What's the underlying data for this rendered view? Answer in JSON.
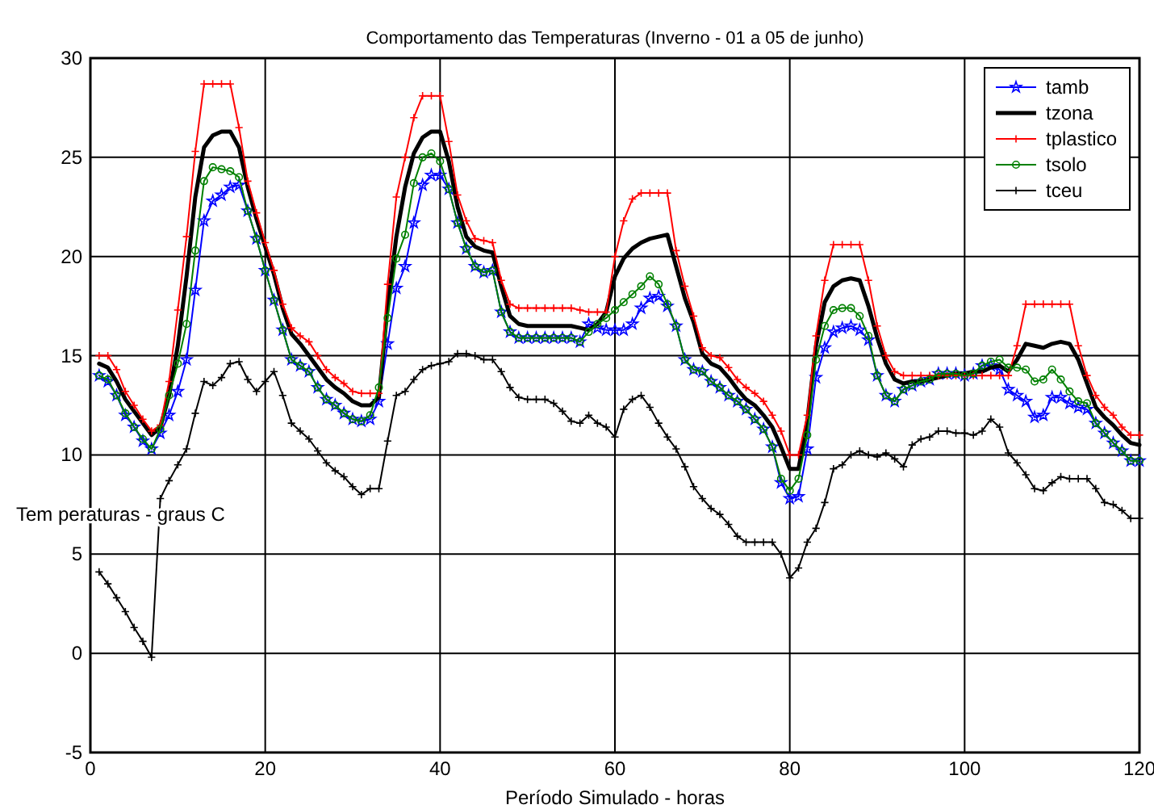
{
  "chart_data": {
    "type": "line",
    "title": "Comportamento das Temperaturas (Inverno - 01 a 05 de junho)",
    "xlabel": "Período Simulado - horas",
    "ylabel": "Tem peraturas -  graus C",
    "x": [
      1,
      2,
      3,
      4,
      5,
      6,
      7,
      8,
      9,
      10,
      11,
      12,
      13,
      14,
      15,
      16,
      17,
      18,
      19,
      20,
      21,
      22,
      23,
      24,
      25,
      26,
      27,
      28,
      29,
      30,
      31,
      32,
      33,
      34,
      35,
      36,
      37,
      38,
      39,
      40,
      41,
      42,
      43,
      44,
      45,
      46,
      47,
      48,
      49,
      50,
      51,
      52,
      53,
      54,
      55,
      56,
      57,
      58,
      59,
      60,
      61,
      62,
      63,
      64,
      65,
      66,
      67,
      68,
      69,
      70,
      71,
      72,
      73,
      74,
      75,
      76,
      77,
      78,
      79,
      80,
      81,
      82,
      83,
      84,
      85,
      86,
      87,
      88,
      89,
      90,
      91,
      92,
      93,
      94,
      95,
      96,
      97,
      98,
      99,
      100,
      101,
      102,
      103,
      104,
      105,
      106,
      107,
      108,
      109,
      110,
      111,
      112,
      113,
      114,
      115,
      116,
      117,
      118,
      119,
      120
    ],
    "series": [
      {
        "name": "tamb",
        "color": "#0000ff",
        "marker": "star",
        "values": [
          14,
          13.7,
          13,
          12,
          11.4,
          10.7,
          10.3,
          11.1,
          12,
          13.2,
          14.8,
          18.3,
          21.8,
          22.8,
          23.1,
          23.5,
          23.6,
          22.3,
          20.9,
          19.3,
          17.8,
          16.3,
          14.8,
          14.5,
          14.2,
          13.4,
          12.8,
          12.5,
          12.1,
          11.8,
          11.7,
          11.8,
          12.7,
          15.6,
          18.4,
          19.5,
          21.7,
          23.6,
          24.1,
          24.1,
          23.4,
          21.7,
          20.4,
          19.5,
          19.2,
          19.3,
          17.2,
          16.2,
          15.9,
          15.9,
          15.9,
          15.9,
          15.9,
          15.9,
          15.9,
          15.7,
          16.6,
          16.4,
          16.3,
          16.3,
          16.3,
          16.6,
          17.4,
          17.9,
          18,
          17.5,
          16.5,
          14.8,
          14.3,
          14.2,
          13.7,
          13.4,
          13,
          12.7,
          12.3,
          11.8,
          11.3,
          10.4,
          8.6,
          7.8,
          7.9,
          10.3,
          13.9,
          15.4,
          16.2,
          16.4,
          16.5,
          16.3,
          15.8,
          14,
          13,
          12.7,
          13.3,
          13.5,
          13.7,
          13.8,
          14.1,
          14.1,
          14.1,
          14,
          14.1,
          14.5,
          14.5,
          14.3,
          13.3,
          13,
          12.7,
          11.9,
          12,
          12.9,
          12.9,
          12.6,
          12.4,
          12.3,
          11.6,
          11.1,
          10.6,
          10.2,
          9.7,
          9.7
        ]
      },
      {
        "name": "tzona",
        "color": "#000000",
        "marker": "none",
        "values": [
          14.6,
          14.4,
          13.7,
          12.8,
          12.2,
          11.6,
          11,
          11.4,
          13,
          15.5,
          19,
          23,
          25.5,
          26.1,
          26.3,
          26.3,
          25.5,
          23.5,
          21.9,
          20.5,
          19.1,
          17.4,
          16.1,
          15.6,
          15,
          14.4,
          13.8,
          13.4,
          13.1,
          12.7,
          12.5,
          12.5,
          12.9,
          17.5,
          21,
          23.5,
          25.2,
          26,
          26.3,
          26.3,
          24.8,
          22.5,
          21,
          20.5,
          20.3,
          20.2,
          18.5,
          17,
          16.6,
          16.5,
          16.5,
          16.5,
          16.5,
          16.5,
          16.5,
          16.4,
          16.3,
          16.6,
          17.2,
          19,
          19.9,
          20.4,
          20.7,
          20.9,
          21,
          21.1,
          19.5,
          17.9,
          16.7,
          15.1,
          14.6,
          14.4,
          13.9,
          13.3,
          12.8,
          12.5,
          12,
          11.4,
          10.4,
          9.3,
          9.3,
          11.7,
          15.5,
          17.7,
          18.5,
          18.8,
          18.9,
          18.8,
          17.5,
          15.9,
          14.6,
          13.8,
          13.6,
          13.7,
          13.7,
          13.8,
          13.9,
          14,
          14.1,
          14.1,
          14.2,
          14.2,
          14.4,
          14.5,
          14.2,
          14.8,
          15.6,
          15.5,
          15.4,
          15.6,
          15.7,
          15.6,
          14.8,
          13.6,
          12.4,
          11.9,
          11.5,
          11,
          10.6,
          10.5
        ]
      },
      {
        "name": "tplastico",
        "color": "#ff0000",
        "marker": "cross",
        "values": [
          15,
          15,
          14.3,
          13.2,
          12.5,
          11.8,
          11.2,
          11.5,
          13.7,
          17.3,
          21,
          25.3,
          28.7,
          28.7,
          28.7,
          28.7,
          26.5,
          23.8,
          22.2,
          20.7,
          19.3,
          17.6,
          16.4,
          16,
          15.7,
          15,
          14.3,
          13.9,
          13.6,
          13.2,
          13.1,
          13.1,
          13.1,
          18.6,
          23,
          25,
          27,
          28.1,
          28.1,
          28.1,
          25.8,
          23.1,
          21.8,
          20.9,
          20.8,
          20.7,
          18.8,
          17.6,
          17.4,
          17.4,
          17.4,
          17.4,
          17.4,
          17.4,
          17.4,
          17.3,
          17.2,
          17.2,
          17.2,
          20,
          21.8,
          22.9,
          23.2,
          23.2,
          23.2,
          23.2,
          20.3,
          18.5,
          17,
          15.4,
          15,
          14.9,
          14.4,
          13.8,
          13.4,
          13.1,
          12.7,
          12,
          11.2,
          10,
          10,
          12,
          16,
          18.8,
          20.6,
          20.6,
          20.6,
          20.6,
          18.8,
          16.5,
          15,
          14.2,
          14,
          14,
          14,
          14,
          14,
          14,
          14,
          14,
          14,
          14,
          14,
          14,
          14,
          15.5,
          17.6,
          17.6,
          17.6,
          17.6,
          17.6,
          17.6,
          15.5,
          14,
          13,
          12.4,
          12,
          11.4,
          11,
          11
        ]
      },
      {
        "name": "tsolo",
        "color": "#008000",
        "marker": "circle",
        "values": [
          14,
          13.8,
          13,
          12.1,
          11.4,
          10.8,
          10.3,
          11.3,
          13,
          14.6,
          16.6,
          20.3,
          23.8,
          24.5,
          24.4,
          24.3,
          24,
          22.3,
          20.9,
          19.3,
          17.8,
          16.3,
          14.8,
          14.5,
          14.2,
          13.4,
          12.8,
          12.5,
          12.1,
          11.8,
          11.7,
          12,
          13.4,
          16.9,
          19.9,
          21.1,
          23.7,
          25,
          25.2,
          24.8,
          23.4,
          21.7,
          20.4,
          19.5,
          19.2,
          19.3,
          17.2,
          16.2,
          15.9,
          15.9,
          15.9,
          15.9,
          15.9,
          15.9,
          15.9,
          15.7,
          16.2,
          16.6,
          16.9,
          17.3,
          17.7,
          18.1,
          18.5,
          19,
          18.6,
          17.6,
          16.5,
          14.8,
          14.3,
          14.2,
          13.7,
          13.4,
          13,
          12.7,
          12.3,
          11.8,
          11.3,
          10.4,
          8.8,
          8.2,
          8.8,
          11,
          14.8,
          16.5,
          17.3,
          17.4,
          17.4,
          17,
          16,
          14,
          13,
          12.7,
          13.3,
          13.5,
          13.7,
          13.8,
          14.1,
          14.1,
          14.1,
          14,
          14.1,
          14.5,
          14.7,
          14.8,
          14.4,
          14.4,
          14.3,
          13.7,
          13.8,
          14.3,
          13.8,
          13.2,
          12.7,
          12.6,
          11.6,
          11.1,
          10.6,
          10.2,
          9.7,
          9.7
        ]
      },
      {
        "name": "tceu",
        "color": "#000000",
        "marker": "cross",
        "values": [
          4.1,
          3.5,
          2.8,
          2.1,
          1.3,
          0.6,
          -0.2,
          7.8,
          8.7,
          9.5,
          10.3,
          12.1,
          13.7,
          13.5,
          13.9,
          14.6,
          14.7,
          13.8,
          13.2,
          13.7,
          14.2,
          13,
          11.6,
          11.2,
          10.8,
          10.2,
          9.6,
          9.2,
          8.9,
          8.4,
          8,
          8.3,
          8.3,
          10.7,
          13,
          13.2,
          13.8,
          14.3,
          14.5,
          14.6,
          14.7,
          15.1,
          15.1,
          15,
          14.8,
          14.8,
          14.2,
          13.4,
          12.9,
          12.8,
          12.8,
          12.8,
          12.6,
          12.2,
          11.7,
          11.6,
          12,
          11.6,
          11.4,
          10.9,
          12.3,
          12.8,
          13,
          12.4,
          11.6,
          10.9,
          10.3,
          9.4,
          8.4,
          7.8,
          7.3,
          7,
          6.5,
          5.9,
          5.6,
          5.6,
          5.6,
          5.6,
          5,
          3.8,
          4.3,
          5.6,
          6.3,
          7.6,
          9.3,
          9.5,
          10,
          10.2,
          10,
          9.9,
          10.1,
          9.8,
          9.4,
          10.5,
          10.8,
          10.9,
          11.2,
          11.2,
          11.1,
          11.1,
          11,
          11.2,
          11.8,
          11.4,
          10.1,
          9.6,
          9,
          8.3,
          8.2,
          8.6,
          8.9,
          8.8,
          8.8,
          8.8,
          8.3,
          7.6,
          7.5,
          7.2,
          6.8,
          6.8
        ]
      }
    ],
    "xlim": [
      0,
      120
    ],
    "xticks": [
      0,
      20,
      40,
      60,
      80,
      100,
      120
    ],
    "ylim": [
      -5,
      30
    ],
    "yticks": [
      -5,
      0,
      5,
      10,
      15,
      20,
      25,
      30
    ],
    "grid": true,
    "legend": "top right"
  }
}
